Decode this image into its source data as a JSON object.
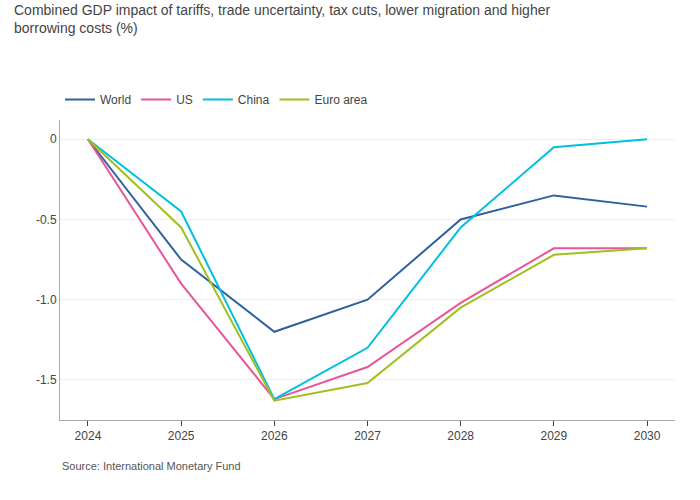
{
  "chart_data": {
    "type": "line",
    "title": "Combined GDP impact of tariffs, trade uncertainty, tax cuts, lower migration and higher borrowing costs (%)",
    "annotations": [
      "Source: International Monetary Fund"
    ],
    "x": [
      2024,
      2025,
      2026,
      2027,
      2028,
      2029,
      2030
    ],
    "series": [
      {
        "name": "World",
        "color": "#3060a0",
        "values": [
          0.0,
          -0.75,
          -1.2,
          -1.0,
          -0.5,
          -0.35,
          -0.42
        ]
      },
      {
        "name": "US",
        "color": "#e8559a",
        "values": [
          0.0,
          -0.9,
          -1.62,
          -1.42,
          -1.02,
          -0.68,
          -0.68
        ]
      },
      {
        "name": "China",
        "color": "#00c0e0",
        "values": [
          0.0,
          -0.45,
          -1.62,
          -1.3,
          -0.55,
          -0.05,
          0.0
        ]
      },
      {
        "name": "Euro area",
        "color": "#a0c020",
        "values": [
          0.0,
          -0.55,
          -1.63,
          -1.52,
          -1.05,
          -0.72,
          -0.68
        ]
      }
    ],
    "xlim": [
      2023.7,
      2030.3
    ],
    "xticks": [
      2024,
      2025,
      2026,
      2027,
      2028,
      2029,
      2030
    ],
    "ylim": [
      -1.75,
      0.12
    ],
    "yticks": [
      0,
      -0.5,
      {
        "value": -1.0,
        "label": "-1.0"
      },
      -1.5
    ],
    "grid": "y",
    "legend": "top"
  }
}
